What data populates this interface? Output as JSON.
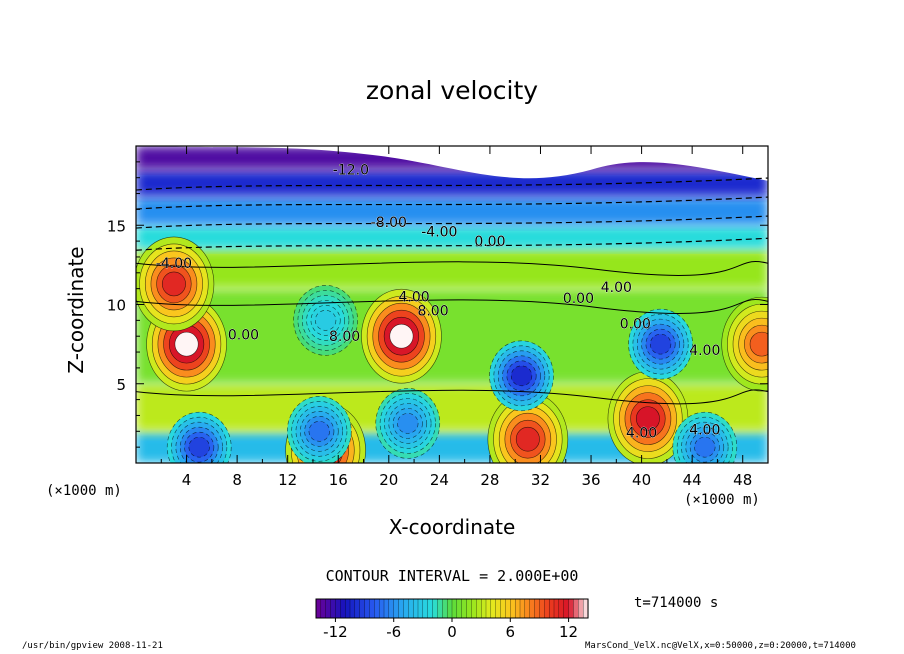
{
  "chart_data": {
    "type": "heatmap",
    "title": "zonal velocity",
    "xlabel": "X-coordinate",
    "ylabel": "Z-coordinate",
    "x_unit_label": "(×1000 m)",
    "y_unit_label": "(×1000 m)",
    "xlim": [
      0,
      50
    ],
    "ylim": [
      0,
      20
    ],
    "x_ticks": [
      "4",
      "8",
      "12",
      "16",
      "20",
      "24",
      "28",
      "32",
      "36",
      "40",
      "44",
      "48"
    ],
    "y_ticks": [
      "5",
      "10",
      "15"
    ],
    "contour_interval_label": "CONTOUR INTERVAL = 2.000E+00",
    "colorbar": {
      "min": -14,
      "max": 14,
      "tick_labels": [
        "-12",
        "-6",
        "0",
        "6",
        "12"
      ]
    },
    "contour_labels": [
      "-12.0",
      "-8.00",
      "-4.00",
      "0.00",
      "4.00",
      "8.00",
      "0.00",
      "4.00",
      "0.00",
      "4.00",
      "-4.00",
      "0.00",
      "4.00",
      "8.00",
      "4.00"
    ],
    "blobs": [
      {
        "x": 4,
        "z": 7.5,
        "value": 14
      },
      {
        "x": 21,
        "z": 8,
        "value": 14
      },
      {
        "x": 15,
        "z": 0.8,
        "value": 12
      },
      {
        "x": 31,
        "z": 1.5,
        "value": 11
      },
      {
        "x": 40.5,
        "z": 2.8,
        "value": 12
      },
      {
        "x": 49.5,
        "z": 7.5,
        "value": 9
      },
      {
        "x": 3,
        "z": 11.3,
        "value": 11
      },
      {
        "x": 30.5,
        "z": 5.5,
        "value": -10
      },
      {
        "x": 41.5,
        "z": 7.5,
        "value": -9
      },
      {
        "x": 15,
        "z": 9,
        "value": -3
      },
      {
        "x": 14.5,
        "z": 2,
        "value": -7
      },
      {
        "x": 21.5,
        "z": 2.5,
        "value": -6
      },
      {
        "x": 5,
        "z": 1,
        "value": -9
      },
      {
        "x": 45,
        "z": 1,
        "value": -7
      }
    ]
  },
  "annotations": {
    "time": "t=714000 s",
    "footer_left": "/usr/bin/gpview   2008-11-21",
    "footer_right": "MarsCond_VelX.nc@VelX,x=0:50000,z=0:20000,t=714000"
  }
}
